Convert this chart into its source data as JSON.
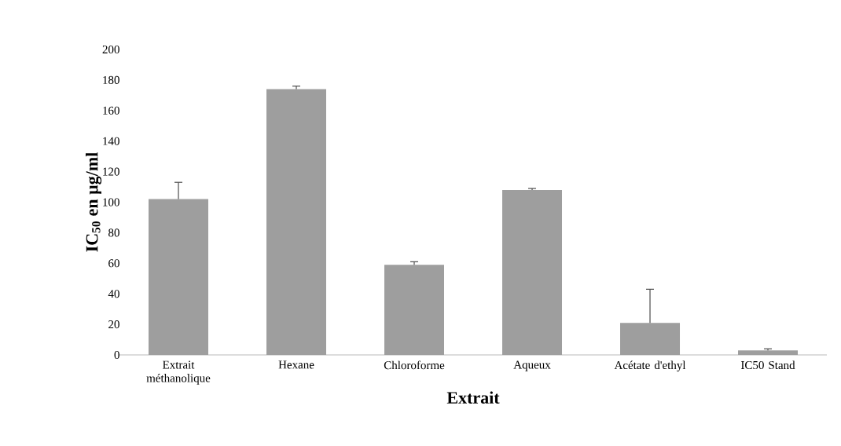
{
  "chart_data": {
    "type": "bar",
    "xlabel": "Extrait",
    "ylabel": "IC$_{50}$ en µg/ml",
    "categories": [
      "Extrait méthanolique",
      "Hexane",
      "Chloroforme",
      "Aqueux",
      "Acétate d'ethyl",
      "IC50 Stand"
    ],
    "values": [
      102,
      174,
      59,
      108,
      21,
      3
    ],
    "errors": [
      [
        102,
        113
      ],
      [
        174,
        176
      ],
      [
        59,
        61
      ],
      [
        108,
        109
      ],
      [
        21,
        43
      ],
      [
        3,
        4
      ]
    ],
    "color": "#9e9e9e",
    "ylim": [
      0,
      200
    ],
    "yticks": [
      0,
      20,
      40,
      60,
      80,
      100,
      120,
      140,
      160,
      180,
      200
    ],
    "grid": false
  }
}
